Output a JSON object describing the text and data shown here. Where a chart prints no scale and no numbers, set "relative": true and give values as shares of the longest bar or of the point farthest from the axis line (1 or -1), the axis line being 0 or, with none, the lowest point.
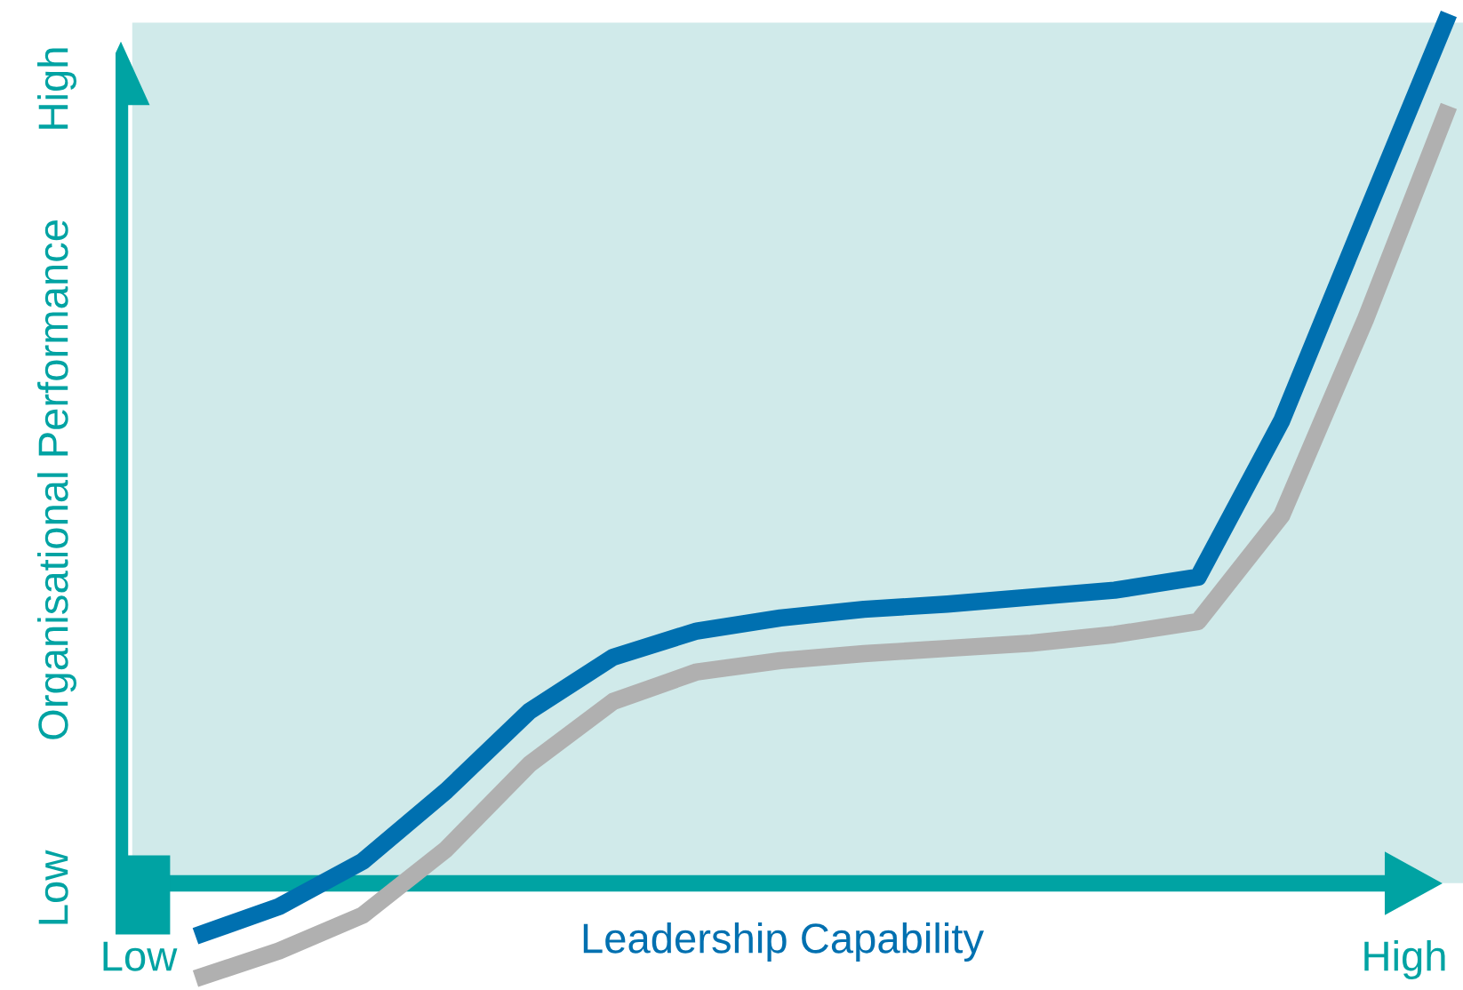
{
  "chart_data": {
    "type": "line",
    "relative": true,
    "xlabel": "Leadership Capability",
    "ylabel": "Organisational Performance",
    "categories": [
      null,
      null,
      null,
      null,
      null,
      null,
      null,
      null,
      null,
      null,
      null,
      null,
      null,
      null,
      null,
      null
    ],
    "series": [
      {
        "color": "#b0b0b0",
        "values": [
          -0.11,
          -0.078,
          -0.037,
          0.039,
          0.137,
          0.209,
          0.243,
          0.256,
          0.264,
          0.27,
          0.276,
          0.286,
          0.301,
          0.423,
          0.648,
          0.894
        ]
      },
      {
        "color": "#0070b0",
        "values": [
          -0.061,
          -0.027,
          0.025,
          0.106,
          0.198,
          0.26,
          0.29,
          0.305,
          0.315,
          0.321,
          0.329,
          0.337,
          0.352,
          0.532,
          0.767,
          1
        ]
      }
    ],
    "annotations": [
      "Low",
      "High",
      "Low",
      "High"
    ],
    "legend": false,
    "marker": "none",
    "line_style": "solid"
  }
}
